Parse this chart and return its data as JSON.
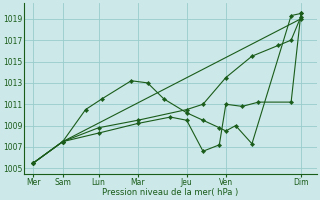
{
  "background_color": "#cce8e8",
  "grid_color": "#99cccc",
  "line_color": "#1a5c1a",
  "xlabel": "Pression niveau de la mer( hPa )",
  "xlim": [
    0,
    9.0
  ],
  "ylim": [
    1004.5,
    1020.5
  ],
  "yticks": [
    1005,
    1007,
    1009,
    1011,
    1013,
    1015,
    1017,
    1019
  ],
  "xtick_labels": [
    "Mer",
    "Sam",
    "Lun",
    "Mar",
    "Jeu",
    "Ven",
    "Dim"
  ],
  "xtick_positions": [
    0.3,
    1.2,
    2.3,
    3.5,
    5.0,
    6.2,
    8.5
  ],
  "series": [
    {
      "x": [
        0.3,
        1.2,
        1.9,
        2.4,
        3.3,
        3.8,
        4.3,
        5.0,
        5.5,
        6.0,
        6.2,
        6.5,
        7.0,
        8.2,
        8.5
      ],
      "y": [
        1005.5,
        1007.5,
        1010.5,
        1011.5,
        1013.2,
        1013.0,
        1011.5,
        1010.2,
        1009.5,
        1008.8,
        1008.5,
        1009.0,
        1007.3,
        1019.3,
        1019.5
      ]
    },
    {
      "x": [
        0.3,
        1.2,
        8.5
      ],
      "y": [
        1005.5,
        1007.5,
        1019.0
      ]
    },
    {
      "x": [
        0.3,
        1.2,
        2.3,
        3.5,
        5.0,
        5.5,
        6.2,
        7.0,
        7.8,
        8.2,
        8.5
      ],
      "y": [
        1005.5,
        1007.5,
        1008.8,
        1009.5,
        1010.5,
        1011.0,
        1013.5,
        1015.5,
        1016.5,
        1017.0,
        1019.2
      ]
    },
    {
      "x": [
        0.3,
        1.2,
        2.3,
        3.5,
        4.5,
        5.0,
        5.5,
        6.0,
        6.2,
        6.7,
        7.2,
        8.2,
        8.5
      ],
      "y": [
        1005.5,
        1007.5,
        1008.3,
        1009.2,
        1009.8,
        1009.5,
        1006.6,
        1007.2,
        1011.0,
        1010.8,
        1011.2,
        1011.2,
        1019.5
      ]
    }
  ]
}
